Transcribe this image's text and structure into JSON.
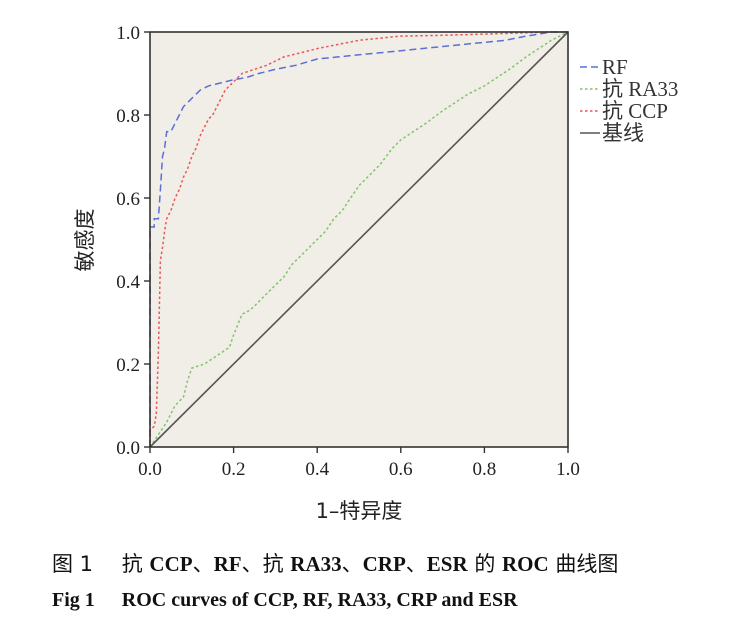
{
  "chart_data": {
    "type": "line",
    "title": "",
    "xlabel": "1–特异度",
    "ylabel": "敏感度",
    "xlim": [
      0.0,
      1.0
    ],
    "ylim": [
      0.0,
      1.0
    ],
    "xticks": [
      "0.0",
      "0.2",
      "0.4",
      "0.6",
      "0.8",
      "1.0"
    ],
    "yticks": [
      "0.0",
      "0.2",
      "0.4",
      "0.6",
      "0.8",
      "1.0"
    ],
    "legend": [
      "RF",
      "抗 RA33",
      "抗 CCP",
      "基线"
    ],
    "legend_position": "right",
    "series": [
      {
        "name": "RF",
        "color": "#5b6fd6",
        "dash": "dashed",
        "x": [
          0.0,
          0.0,
          0.01,
          0.01,
          0.02,
          0.025,
          0.03,
          0.035,
          0.04,
          0.05,
          0.06,
          0.07,
          0.08,
          0.1,
          0.12,
          0.14,
          0.16,
          0.18,
          0.2,
          0.23,
          0.26,
          0.3,
          0.35,
          0.4,
          0.45,
          0.5,
          0.55,
          0.6,
          0.65,
          0.7,
          0.75,
          0.8,
          0.85,
          0.9,
          0.93,
          0.96,
          1.0
        ],
        "y": [
          0.0,
          0.53,
          0.53,
          0.55,
          0.55,
          0.62,
          0.7,
          0.72,
          0.76,
          0.76,
          0.78,
          0.8,
          0.82,
          0.84,
          0.86,
          0.87,
          0.875,
          0.88,
          0.885,
          0.89,
          0.9,
          0.91,
          0.92,
          0.935,
          0.94,
          0.945,
          0.95,
          0.955,
          0.96,
          0.965,
          0.97,
          0.975,
          0.98,
          0.99,
          0.995,
          1.0,
          1.0
        ]
      },
      {
        "name": "抗 RA33",
        "color": "#7fc46a",
        "dash": "dotted",
        "x": [
          0.0,
          0.02,
          0.04,
          0.06,
          0.08,
          0.09,
          0.1,
          0.13,
          0.16,
          0.19,
          0.2,
          0.22,
          0.24,
          0.26,
          0.28,
          0.3,
          0.32,
          0.34,
          0.36,
          0.38,
          0.4,
          0.42,
          0.44,
          0.46,
          0.48,
          0.5,
          0.52,
          0.55,
          0.58,
          0.6,
          0.63,
          0.66,
          0.7,
          0.73,
          0.76,
          0.8,
          0.83,
          0.86,
          0.9,
          0.93,
          0.96,
          1.0
        ],
        "y": [
          0.0,
          0.03,
          0.06,
          0.1,
          0.12,
          0.16,
          0.19,
          0.2,
          0.22,
          0.24,
          0.27,
          0.32,
          0.33,
          0.35,
          0.37,
          0.39,
          0.41,
          0.44,
          0.46,
          0.48,
          0.5,
          0.52,
          0.55,
          0.57,
          0.6,
          0.63,
          0.65,
          0.68,
          0.72,
          0.74,
          0.76,
          0.78,
          0.81,
          0.83,
          0.85,
          0.87,
          0.89,
          0.91,
          0.94,
          0.96,
          0.98,
          1.0
        ]
      },
      {
        "name": "抗 CCP",
        "color": "#e8575a",
        "dash": "dotted",
        "x": [
          0.0,
          0.0,
          0.01,
          0.015,
          0.02,
          0.025,
          0.03,
          0.035,
          0.04,
          0.05,
          0.06,
          0.07,
          0.08,
          0.09,
          0.1,
          0.11,
          0.12,
          0.13,
          0.14,
          0.15,
          0.16,
          0.17,
          0.18,
          0.19,
          0.2,
          0.22,
          0.25,
          0.28,
          0.32,
          0.36,
          0.4,
          0.45,
          0.5,
          0.55,
          0.6,
          0.7,
          0.8,
          0.9,
          0.95,
          1.0
        ],
        "y": [
          0.0,
          0.04,
          0.05,
          0.08,
          0.23,
          0.45,
          0.48,
          0.52,
          0.55,
          0.57,
          0.6,
          0.62,
          0.65,
          0.67,
          0.7,
          0.72,
          0.75,
          0.77,
          0.79,
          0.8,
          0.82,
          0.84,
          0.86,
          0.87,
          0.88,
          0.9,
          0.91,
          0.92,
          0.94,
          0.95,
          0.96,
          0.97,
          0.98,
          0.985,
          0.99,
          0.992,
          0.995,
          0.998,
          1.0,
          1.0
        ]
      },
      {
        "name": "基线",
        "color": "#555555",
        "dash": "solid",
        "x": [
          0.0,
          1.0
        ],
        "y": [
          0.0,
          1.0
        ]
      }
    ]
  },
  "captions": {
    "cn_label": "图 1",
    "cn_text_parts": [
      {
        "text": "抗 ",
        "bold": false
      },
      {
        "text": "CCP",
        "bold": true
      },
      {
        "text": "、",
        "bold": false
      },
      {
        "text": "RF",
        "bold": true
      },
      {
        "text": "、抗 ",
        "bold": false
      },
      {
        "text": "RA33",
        "bold": true
      },
      {
        "text": "、",
        "bold": false
      },
      {
        "text": "CRP",
        "bold": true
      },
      {
        "text": "、",
        "bold": false
      },
      {
        "text": "ESR",
        "bold": true
      },
      {
        "text": " 的 ",
        "bold": false
      },
      {
        "text": "ROC",
        "bold": true
      },
      {
        "text": " 曲线图",
        "bold": false
      }
    ],
    "en_label": "Fig 1",
    "en_text": "ROC curves of CCP, RF, RA33, CRP and ESR"
  },
  "colors": {
    "plot_background": "#f1ede7",
    "axis": "#333333"
  }
}
